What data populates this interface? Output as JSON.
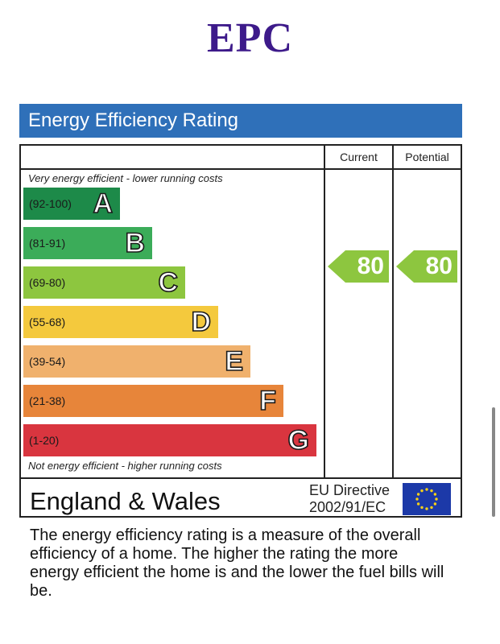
{
  "page": {
    "title": "EPC"
  },
  "epc": {
    "header": "Energy Efficiency Rating",
    "columns": {
      "current": "Current",
      "potential": "Potential"
    },
    "top_note": "Very energy efficient - lower running costs",
    "bottom_note": "Not energy efficient - higher running costs",
    "bands": [
      {
        "letter": "A",
        "range": "(92-100)",
        "color": "#1d8a49"
      },
      {
        "letter": "B",
        "range": "(81-91)",
        "color": "#3bac59"
      },
      {
        "letter": "C",
        "range": "(69-80)",
        "color": "#8dc63f"
      },
      {
        "letter": "D",
        "range": "(55-68)",
        "color": "#f4c93d"
      },
      {
        "letter": "E",
        "range": "(39-54)",
        "color": "#f0b16d"
      },
      {
        "letter": "F",
        "range": "(21-38)",
        "color": "#e7853a"
      },
      {
        "letter": "G",
        "range": "(1-20)",
        "color": "#d9353f"
      }
    ],
    "current_value": "80",
    "potential_value": "80",
    "current_band": "C",
    "potential_band": "C",
    "region": "England & Wales",
    "directive_line1": "EU Directive",
    "directive_line2": "2002/91/EC",
    "flag_icon": "eu-flag-icon"
  },
  "description": "The energy efficiency rating is a measure of the overall efficiency of a home. The higher the rating the more energy efficient the home is and the lower the fuel bills will be."
}
